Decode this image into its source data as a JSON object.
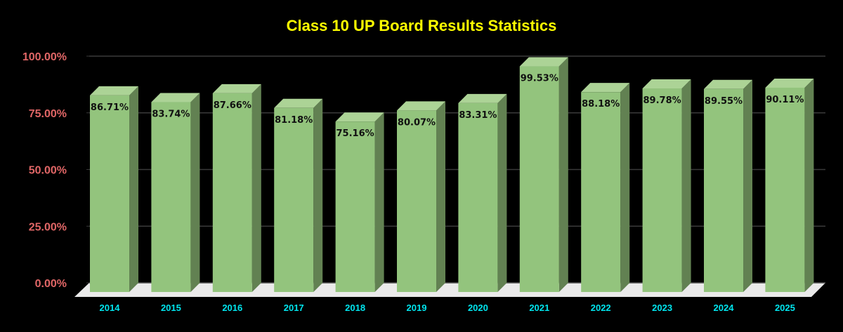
{
  "chart_data": {
    "type": "bar",
    "title": "Class 10 UP Board Results Statistics",
    "xlabel": "",
    "ylabel": "",
    "ylim": [
      0,
      100
    ],
    "yticks": [
      "0.00%",
      "25.00%",
      "50.00%",
      "75.00%",
      "100.00%"
    ],
    "grid": true,
    "legend": null,
    "style": "3d-column",
    "categories": [
      "2014",
      "2015",
      "2016",
      "2017",
      "2018",
      "2019",
      "2020",
      "2021",
      "2022",
      "2023",
      "2024",
      "2025"
    ],
    "values": [
      86.71,
      83.74,
      87.66,
      81.18,
      75.16,
      80.07,
      83.31,
      99.53,
      88.18,
      89.78,
      89.55,
      90.11
    ],
    "data_labels": [
      "86.71%",
      "83.74%",
      "87.66%",
      "81.18%",
      "75.16%",
      "80.07%",
      "83.31%",
      "99.53%",
      "88.18%",
      "89.78%",
      "89.55%",
      "90.11%"
    ],
    "colors": {
      "background": "#000000",
      "title": "#ffff00",
      "ytick": "#e06666",
      "xtick": "#00e5ee",
      "bar_front": "#93c47d",
      "bar_top": "#acd396",
      "bar_side": "#628152",
      "floor": "#eaeaea",
      "grid": "#3a3a3a"
    }
  }
}
